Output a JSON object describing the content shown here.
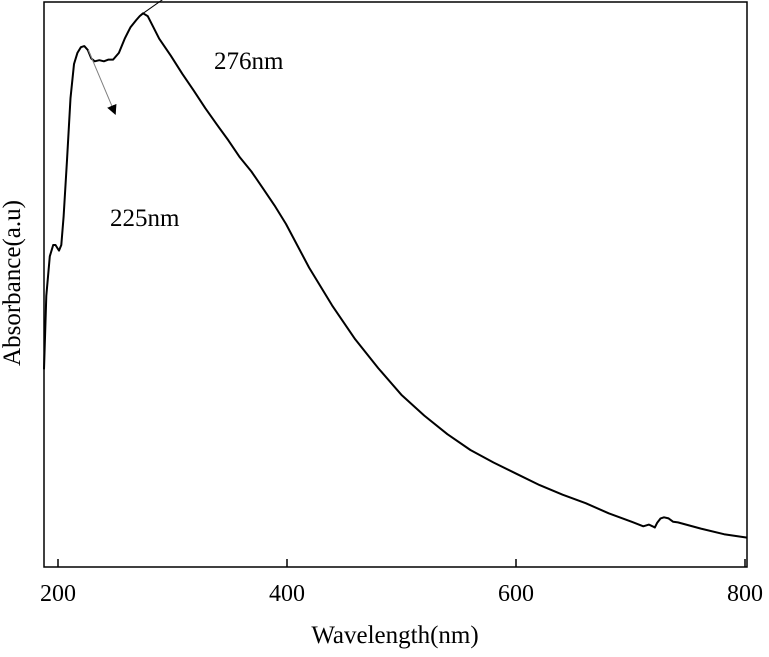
{
  "chart_data": {
    "type": "line",
    "title": "",
    "xlabel": "Wavelength(nm)",
    "ylabel": "Absorbance(a.u)",
    "xlim": [
      190,
      800
    ],
    "ylim": [
      0,
      1.0
    ],
    "grid": false,
    "legend": "none",
    "x_ticks": [
      200,
      400,
      600,
      800
    ],
    "x_tick_labels": [
      "200",
      "400",
      "600",
      "800"
    ],
    "y_tick_labels": [],
    "series": [
      {
        "color": "#000000",
        "x": [
          190,
          192,
          195,
          198,
          200,
          203,
          205,
          207,
          210,
          213,
          216,
          219,
          222,
          225,
          228,
          231,
          234,
          238,
          242,
          246,
          250,
          255,
          260,
          265,
          270,
          273,
          276,
          280,
          285,
          290,
          300,
          310,
          320,
          330,
          340,
          350,
          360,
          370,
          380,
          390,
          400,
          420,
          440,
          460,
          480,
          500,
          520,
          540,
          560,
          580,
          600,
          620,
          640,
          660,
          680,
          700,
          710,
          715,
          718,
          720,
          722,
          725,
          728,
          732,
          736,
          740,
          760,
          780,
          800
        ],
        "y": [
          0.35,
          0.48,
          0.55,
          0.57,
          0.57,
          0.56,
          0.57,
          0.62,
          0.72,
          0.83,
          0.89,
          0.91,
          0.92,
          0.922,
          0.915,
          0.9,
          0.895,
          0.897,
          0.895,
          0.898,
          0.898,
          0.91,
          0.935,
          0.955,
          0.968,
          0.975,
          0.98,
          0.975,
          0.955,
          0.935,
          0.905,
          0.873,
          0.843,
          0.812,
          0.783,
          0.755,
          0.725,
          0.7,
          0.67,
          0.64,
          0.607,
          0.53,
          0.463,
          0.403,
          0.352,
          0.305,
          0.268,
          0.235,
          0.207,
          0.185,
          0.165,
          0.145,
          0.128,
          0.113,
          0.095,
          0.08,
          0.072,
          0.075,
          0.072,
          0.07,
          0.078,
          0.086,
          0.088,
          0.086,
          0.08,
          0.079,
          0.068,
          0.058,
          0.052
        ]
      }
    ],
    "annotations": [
      {
        "label": "276nm",
        "x": 276,
        "y": 0.98
      },
      {
        "label": "225nm",
        "x": 225,
        "y": 0.922
      }
    ]
  }
}
